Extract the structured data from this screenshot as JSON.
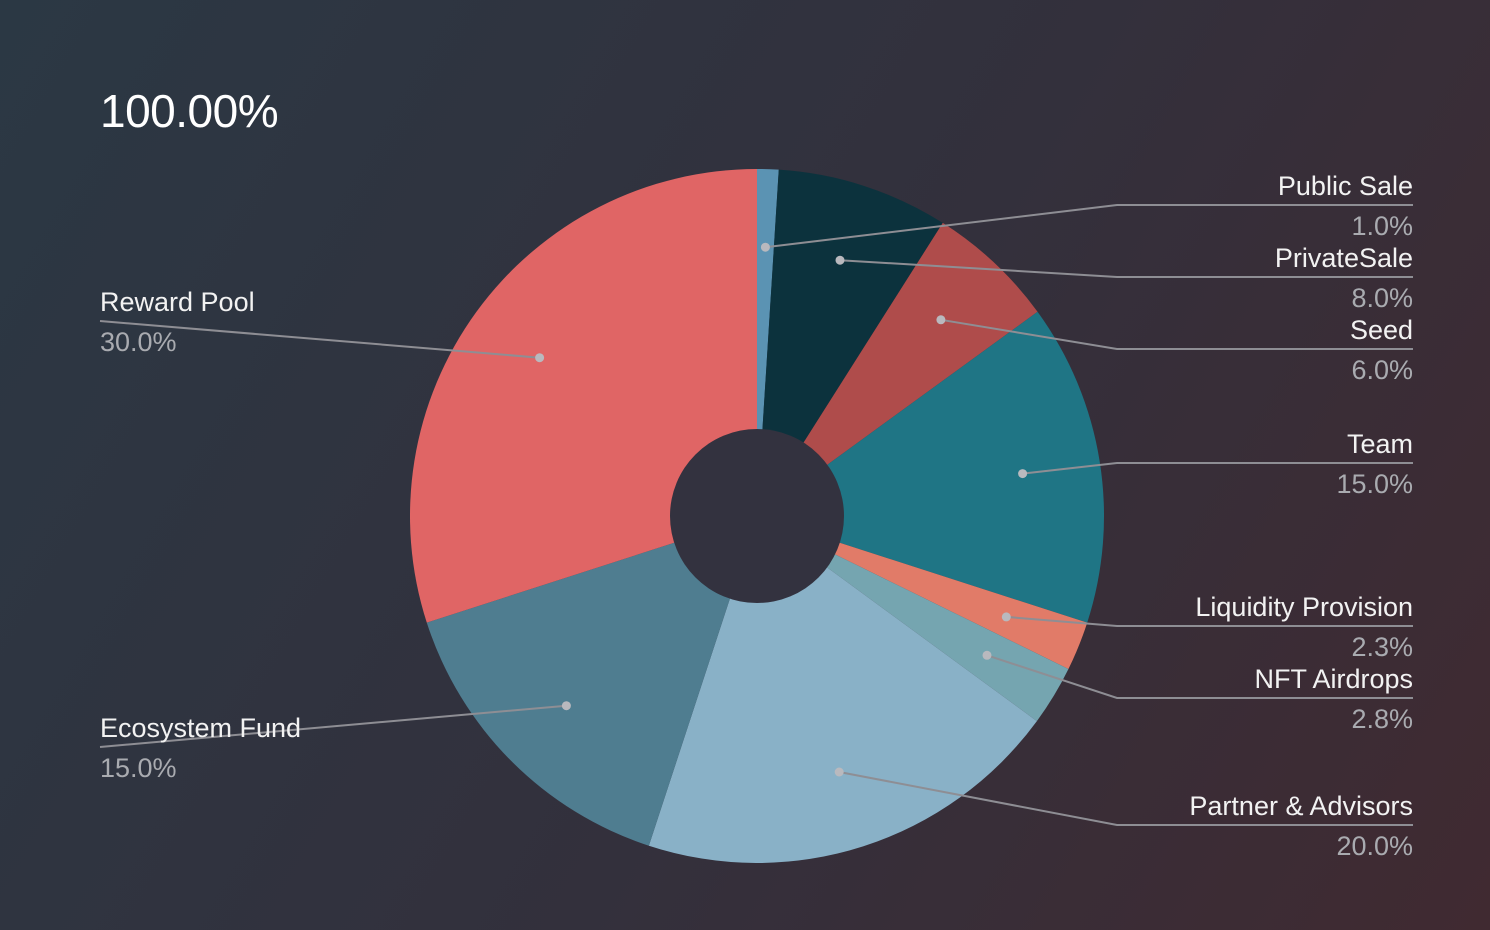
{
  "total_label": "100.00%",
  "chart_data": {
    "type": "pie",
    "donut": true,
    "slices": [
      {
        "name": "Public Sale",
        "value": 1.0,
        "label": "1.0%",
        "color": "#5b93b3",
        "side": "right"
      },
      {
        "name": "PrivateSale",
        "value": 8.0,
        "label": "8.0%",
        "color": "#0c323d",
        "side": "right"
      },
      {
        "name": "Seed",
        "value": 6.0,
        "label": "6.0%",
        "color": "#af4c4b",
        "side": "right"
      },
      {
        "name": "Team",
        "value": 15.0,
        "label": "15.0%",
        "color": "#1f7585",
        "side": "right"
      },
      {
        "name": "Liquidity Provision",
        "value": 2.3,
        "label": "2.3%",
        "color": "#e17b68",
        "side": "right"
      },
      {
        "name": "NFT Airdrops",
        "value": 2.8,
        "label": "2.8%",
        "color": "#75a5b0",
        "side": "right"
      },
      {
        "name": "Partner & Advisors",
        "value": 20.0,
        "label": "20.0%",
        "color": "#89b1c7",
        "side": "right"
      },
      {
        "name": "Ecosystem Fund",
        "value": 15.0,
        "label": "15.0%",
        "color": "#4f7d90",
        "side": "left"
      },
      {
        "name": "Reward Pool",
        "value": 30.0,
        "label": "30.0%",
        "color": "#e06565",
        "side": "left"
      }
    ],
    "hole_color": "#33323f",
    "legend": "callout-labels",
    "label_line_color": "#8e8e94",
    "dot_color": "#b9b9be"
  }
}
